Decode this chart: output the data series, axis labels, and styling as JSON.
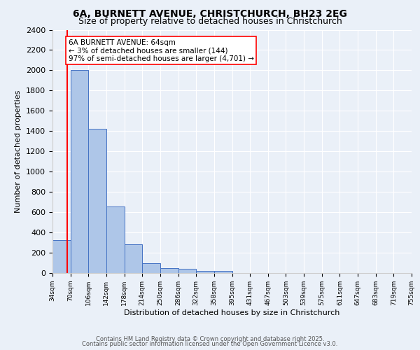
{
  "title1": "6A, BURNETT AVENUE, CHRISTCHURCH, BH23 2EG",
  "title2": "Size of property relative to detached houses in Christchurch",
  "xlabel": "Distribution of detached houses by size in Christchurch",
  "ylabel": "Number of detached properties",
  "bar_values": [
    325,
    2000,
    1420,
    655,
    285,
    100,
    45,
    40,
    22,
    18,
    0,
    0,
    0,
    0,
    0,
    0,
    0,
    0,
    0,
    0
  ],
  "bin_labels": [
    "34sqm",
    "70sqm",
    "106sqm",
    "142sqm",
    "178sqm",
    "214sqm",
    "250sqm",
    "286sqm",
    "322sqm",
    "358sqm",
    "395sqm",
    "431sqm",
    "467sqm",
    "503sqm",
    "539sqm",
    "575sqm",
    "611sqm",
    "647sqm",
    "683sqm",
    "719sqm",
    "755sqm"
  ],
  "bar_color": "#aec6e8",
  "bar_edge_color": "#4472c4",
  "annotation_text": "6A BURNETT AVENUE: 64sqm\n← 3% of detached houses are smaller (144)\n97% of semi-detached houses are larger (4,701) →",
  "annotation_box_color": "white",
  "annotation_box_edge": "red",
  "vline_color": "red",
  "vline_x": 0.83,
  "ylim": [
    0,
    2400
  ],
  "yticks": [
    0,
    200,
    400,
    600,
    800,
    1000,
    1200,
    1400,
    1600,
    1800,
    2000,
    2200,
    2400
  ],
  "footer1": "Contains HM Land Registry data © Crown copyright and database right 2025.",
  "footer2": "Contains public sector information licensed under the Open Government Licence v3.0.",
  "bg_color": "#eaf0f8",
  "plot_bg_color": "#eaf0f8"
}
